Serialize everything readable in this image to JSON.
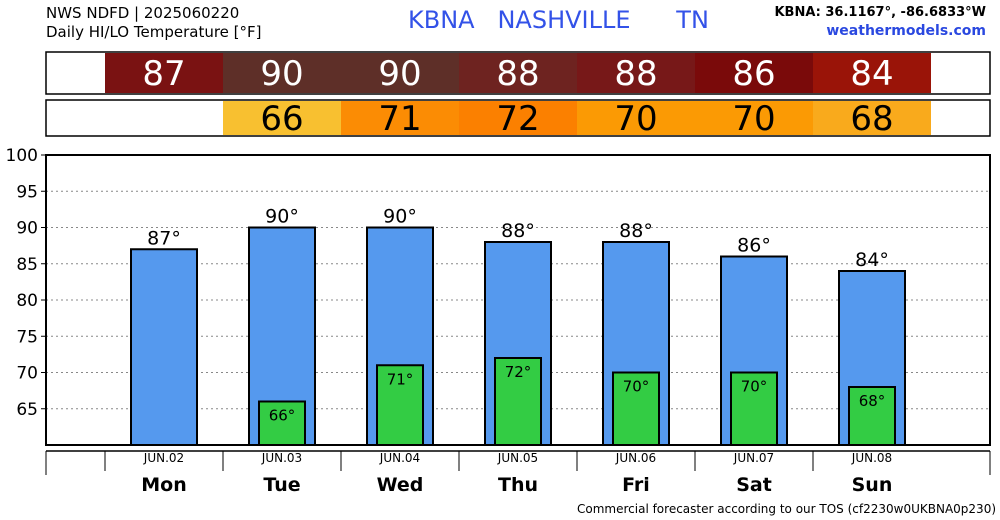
{
  "header": {
    "product": "NWS NDFD | 2025060220",
    "subtitle": "Daily HI/LO Temperature [°F]",
    "station": "KBNA   NASHVILLE      TN",
    "coords": "KBNA: 36.1167°, -86.6833°W",
    "site": "weathermodels.com"
  },
  "footer": "Commercial forecaster according to our TOS (cf2230w0UKBNA0p230)",
  "colors": {
    "hi_bar": "#5599ee",
    "lo_bar": "#33cc44",
    "hi_strip": [
      "#7a1212",
      "#5e2f28",
      "#5e2f28",
      "#6e2320",
      "#771818",
      "#7a0a0a",
      "#9a1408"
    ],
    "lo_strip": [
      "#f8c030",
      "#fb8c04",
      "#fb8000",
      "#fb9a04",
      "#fb9a04",
      "#f9aa1c"
    ]
  },
  "chart_data": {
    "type": "bar",
    "categories": [
      "Mon",
      "Tue",
      "Wed",
      "Thu",
      "Fri",
      "Sat",
      "Sun"
    ],
    "dates": [
      "JUN.02",
      "JUN.03",
      "JUN.04",
      "JUN.05",
      "JUN.06",
      "JUN.07",
      "JUN.08"
    ],
    "series": [
      {
        "values": [
          87,
          90,
          90,
          88,
          88,
          86,
          84
        ],
        "labels": [
          "87°",
          "90°",
          "90°",
          "88°",
          "88°",
          "86°",
          "84°"
        ],
        "strip": [
          "87",
          "90",
          "90",
          "88",
          "88",
          "86",
          "84"
        ]
      },
      {
        "values": [
          null,
          66,
          71,
          72,
          70,
          70,
          68
        ],
        "labels": [
          "",
          "66°",
          "71°",
          "72°",
          "70°",
          "70°",
          "68°"
        ],
        "strip": [
          "",
          "66",
          "71",
          "72",
          "70",
          "70",
          "68"
        ]
      }
    ],
    "ylim": [
      60,
      100
    ],
    "yticks": [
      "100",
      "95",
      "90",
      "85",
      "80",
      "75",
      "70",
      "65"
    ],
    "grid": true
  }
}
